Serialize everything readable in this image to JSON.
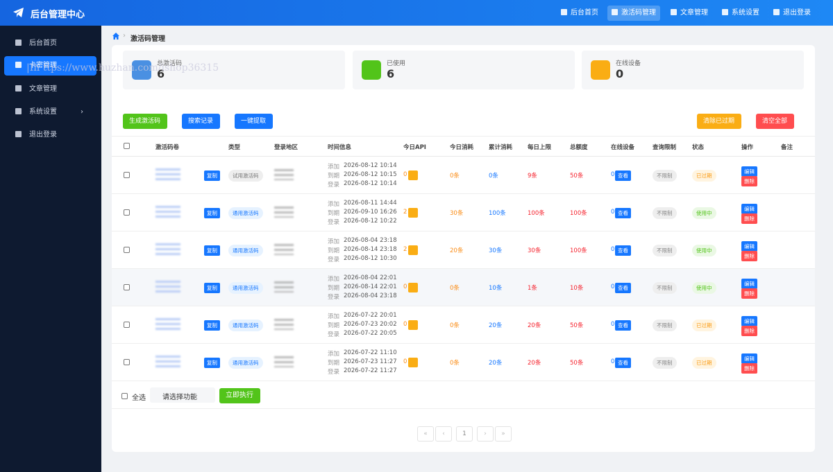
{
  "header": {
    "brand": "后台管理中心",
    "nav": [
      "后台首页",
      "激活码管理",
      "文章管理",
      "系统设置",
      "退出登录"
    ]
  },
  "sidebar": {
    "items": [
      "后台首页",
      "卡密管理",
      "文章管理",
      "系统设置",
      "退出登录"
    ]
  },
  "watermark": "|Ih ttps://www.huzhan.com/ishop36315",
  "breadcrumb": "激活码管理",
  "stats": [
    {
      "label": "总激活码",
      "value": "6"
    },
    {
      "label": "已使用",
      "value": "6"
    },
    {
      "label": "在线设备",
      "value": "0"
    }
  ],
  "toolbar": {
    "left": [
      "生成激活码",
      "搜索记录",
      "一键提取"
    ],
    "right": [
      "清除已过期",
      "清空全部"
    ]
  },
  "table": {
    "headers": [
      "激活码卷",
      "类型",
      "登录地区",
      "时间信息",
      "今日API",
      "今日消耗",
      "累计消耗",
      "每日上限",
      "总额度",
      "在线设备",
      "查询限制",
      "状态",
      "操作",
      "备注"
    ],
    "rows": [
      {
        "copy": "复制",
        "type": "试用激活码",
        "times": [
          {
            "label": "添加",
            "time": "2026-08-12 10:14"
          },
          {
            "label": "到期",
            "time": "2026-08-12 10:15"
          },
          {
            "label": "登录",
            "time": "2026-08-12 10:14"
          }
        ],
        "api": "0",
        "today": "0条",
        "total": "0条",
        "daily": "9条",
        "quota": "50条",
        "online": "0",
        "view": "查看",
        "limit": "不限制",
        "status": "已过期",
        "edit": "编辑",
        "delete": "删除"
      },
      {
        "copy": "复制",
        "type": "通用激活码",
        "times": [
          {
            "label": "添加",
            "time": "2026-08-11 14:44"
          },
          {
            "label": "到期",
            "time": "2026-09-10 16:26"
          },
          {
            "label": "登录",
            "time": "2026-08-12 10:22"
          }
        ],
        "api": "2",
        "today": "30条",
        "total": "100条",
        "daily": "100条",
        "quota": "100条",
        "online": "0",
        "view": "查看",
        "limit": "不限制",
        "status": "使用中",
        "edit": "编辑",
        "delete": "删除"
      },
      {
        "copy": "复制",
        "type": "通用激活码",
        "times": [
          {
            "label": "添加",
            "time": "2026-08-04 23:18"
          },
          {
            "label": "到期",
            "time": "2026-08-14 23:18"
          },
          {
            "label": "登录",
            "time": "2026-08-12 10:30"
          }
        ],
        "api": "2",
        "today": "20条",
        "total": "30条",
        "daily": "30条",
        "quota": "100条",
        "online": "0",
        "view": "查看",
        "limit": "不限制",
        "status": "使用中",
        "edit": "编辑",
        "delete": "删除"
      },
      {
        "copy": "复制",
        "type": "通用激活码",
        "times": [
          {
            "label": "添加",
            "time": "2026-08-04 22:01"
          },
          {
            "label": "到期",
            "time": "2026-08-14 22:01"
          },
          {
            "label": "登录",
            "time": "2026-08-04 23:18"
          }
        ],
        "api": "0",
        "today": "0条",
        "total": "10条",
        "daily": "1条",
        "quota": "10条",
        "online": "0",
        "view": "查看",
        "limit": "不限制",
        "status": "使用中",
        "edit": "编辑",
        "delete": "删除"
      },
      {
        "copy": "复制",
        "type": "通用激活码",
        "times": [
          {
            "label": "添加",
            "time": "2026-07-22 20:01"
          },
          {
            "label": "到期",
            "time": "2026-07-23 20:02"
          },
          {
            "label": "登录",
            "time": "2026-07-22 20:05"
          }
        ],
        "api": "0",
        "today": "0条",
        "total": "20条",
        "daily": "20条",
        "quota": "50条",
        "online": "0",
        "view": "查看",
        "limit": "不限制",
        "status": "已过期",
        "edit": "编辑",
        "delete": "删除"
      },
      {
        "copy": "复制",
        "type": "通用激活码",
        "times": [
          {
            "label": "添加",
            "time": "2026-07-22 11:10"
          },
          {
            "label": "到期",
            "time": "2026-07-23 11:27"
          },
          {
            "label": "登录",
            "time": "2026-07-22 11:27"
          }
        ],
        "api": "0",
        "today": "0条",
        "total": "20条",
        "daily": "20条",
        "quota": "50条",
        "online": "0",
        "view": "查看",
        "limit": "不限制",
        "status": "已过期",
        "edit": "编辑",
        "delete": "删除"
      }
    ]
  },
  "footer": {
    "select_all": "全选",
    "select": "请选择功能",
    "execute": "立即执行"
  },
  "pagination": [
    "«",
    "‹",
    "1",
    "›",
    "»"
  ]
}
